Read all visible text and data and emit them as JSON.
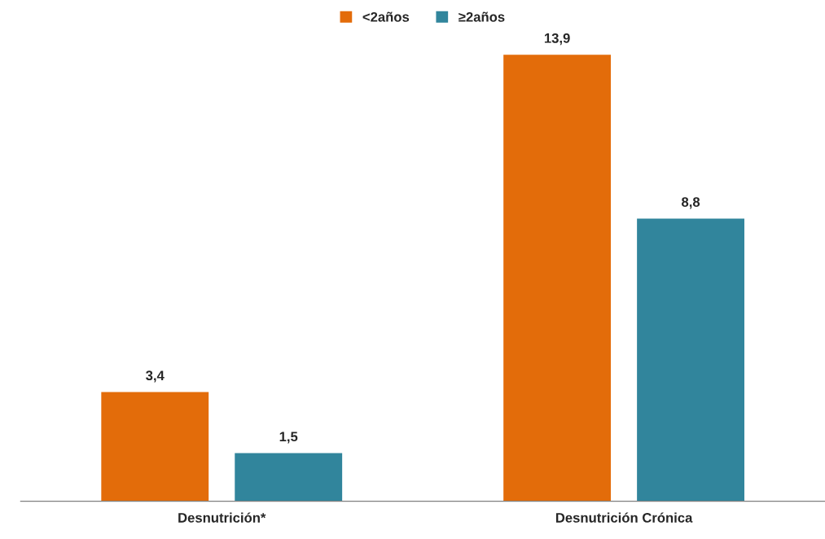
{
  "chart_data": {
    "type": "bar",
    "categories": [
      "Desnutrición*",
      "Desnutrición Crónica"
    ],
    "series": [
      {
        "name": "<2años",
        "color": "#e36c0a",
        "values": [
          3.4,
          13.9
        ],
        "value_labels": [
          "3,4",
          "13,9"
        ]
      },
      {
        "name": "≥2años",
        "color": "#31859c",
        "values": [
          1.5,
          8.8
        ],
        "value_labels": [
          "1,5",
          "8,8"
        ]
      }
    ],
    "legend": "top",
    "grid": false,
    "tick_labels": "x"
  }
}
